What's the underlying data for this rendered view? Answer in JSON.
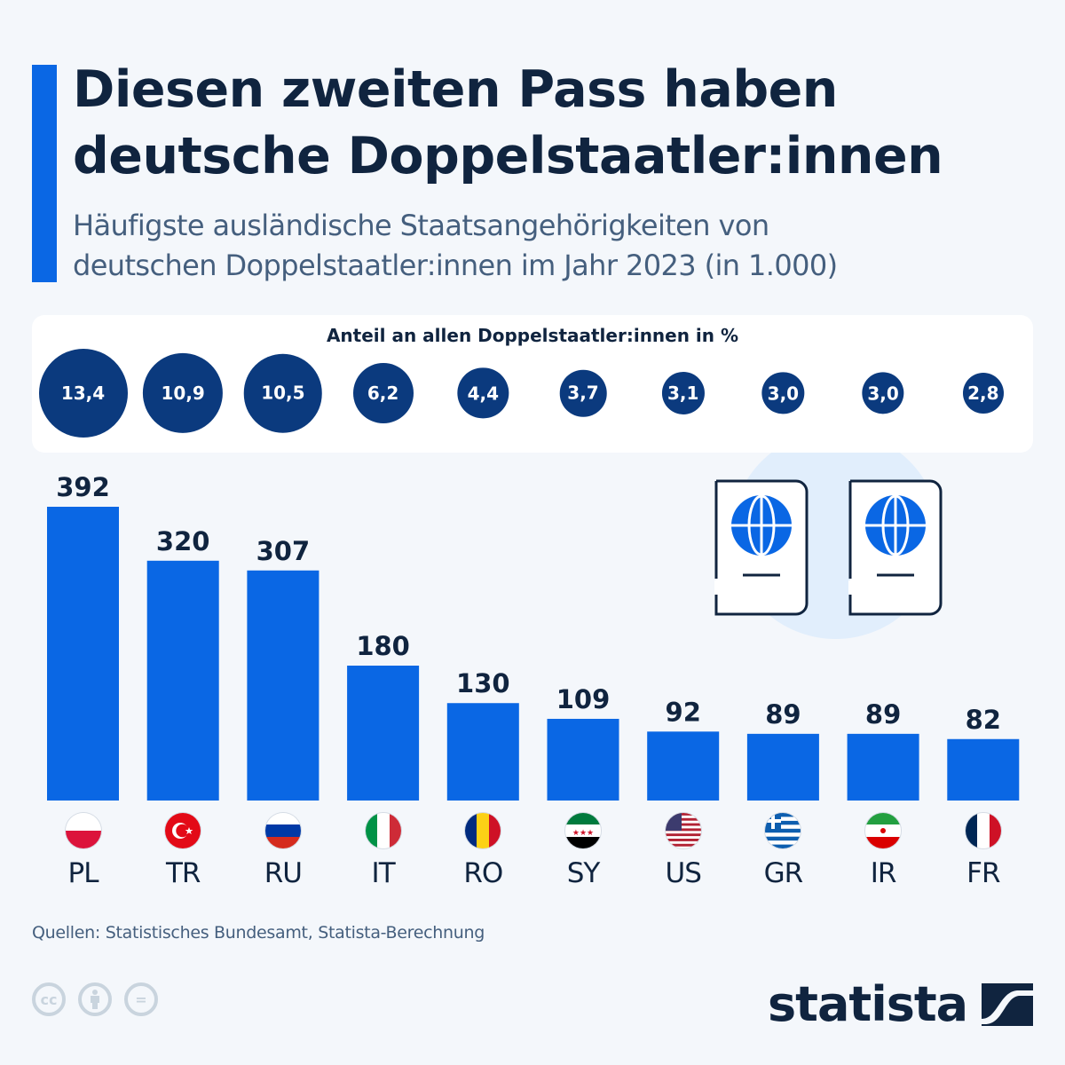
{
  "header": {
    "title_line1": "Diesen zweiten Pass haben",
    "title_line2": "deutsche Doppelstaatler:innen",
    "subtitle_line1": "Häufigste ausländische Staatsangehörigkeiten von",
    "subtitle_line2": "deutschen Doppelstaatler:innen im Jahr 2023 (in 1.000)"
  },
  "share_panel": {
    "title": "Anteil an allen Doppelstaatler:innen in %",
    "values": [
      "13,4",
      "10,9",
      "10,5",
      "6,2",
      "4,4",
      "3,7",
      "3,1",
      "3,0",
      "3,0",
      "2,8"
    ]
  },
  "chart_data": {
    "type": "bar",
    "title": "Diesen zweiten Pass haben deutsche Doppelstaatler:innen",
    "subtitle": "Häufigste ausländische Staatsangehörigkeiten von deutschen Doppelstaatler:innen im Jahr 2023 (in 1.000)",
    "categories": [
      "PL",
      "TR",
      "RU",
      "IT",
      "RO",
      "SY",
      "US",
      "GR",
      "IR",
      "FR"
    ],
    "values": [
      392,
      320,
      307,
      180,
      130,
      109,
      92,
      89,
      89,
      82
    ],
    "share_percent": [
      13.4,
      10.9,
      10.5,
      6.2,
      4.4,
      3.7,
      3.1,
      3.0,
      3.0,
      2.8
    ],
    "xlabel": "",
    "ylabel": "in 1.000",
    "ylim": [
      0,
      392
    ],
    "grid": false,
    "bar_color": "#0a67e4",
    "bubble_color": "#0b3a7e"
  },
  "flags": [
    "poland-flag",
    "turkey-flag",
    "russia-flag",
    "italy-flag",
    "romania-flag",
    "syria-flag",
    "usa-flag",
    "greece-flag",
    "iran-flag",
    "france-flag"
  ],
  "footer": {
    "source": "Quellen: Statistisches Bundesamt, Statista-Berechnung",
    "license_icons": [
      "cc-icon",
      "by-icon",
      "nd-icon"
    ],
    "cc_text": "cc",
    "nd_text": "=",
    "logo": "statista"
  },
  "colors": {
    "accent": "#0a67e4",
    "title": "#10243f",
    "subtitle": "#455f7e",
    "background": "#f4f7fb"
  }
}
